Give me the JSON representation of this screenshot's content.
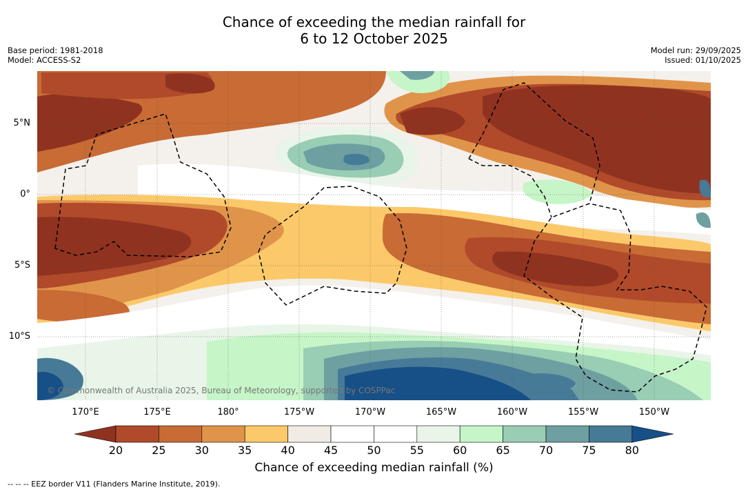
{
  "title": {
    "line1": "Chance of exceeding the median rainfall for",
    "line2": "6 to 12 October 2025"
  },
  "meta_left": {
    "base_period": "Base period: 1981-2018",
    "model": "Model: ACCESS-S2"
  },
  "meta_right": {
    "model_run": "Model run: 29/09/2025",
    "issued": "Issued: 01/10/2025"
  },
  "map": {
    "lat_labels": [
      "5°N",
      "0°",
      "5°S",
      "10°S"
    ],
    "lon_labels": [
      "170°E",
      "175°E",
      "180°",
      "175°W",
      "170°W",
      "165°W",
      "160°W",
      "155°W",
      "150°W"
    ],
    "copyright": "© Commonwealth of Australia 2025, Bureau of Meteorology, supported by COSPPac"
  },
  "colorbar": {
    "ticks": [
      "20",
      "25",
      "30",
      "35",
      "40",
      "45",
      "50",
      "55",
      "60",
      "65",
      "70",
      "75",
      "80"
    ],
    "colors": [
      "#8f3320",
      "#b04a2a",
      "#c86b35",
      "#e0944a",
      "#fbc96a",
      "#f0ebe4",
      "#ffffff",
      "#ffffff",
      "#e9f5e9",
      "#c6f5c8",
      "#99cdb4",
      "#6e9fa1",
      "#467a97",
      "#174f87"
    ],
    "title": "Chance of exceeding median rainfall (%)"
  },
  "footer": "--  --  -- EEZ border V11 (Flanders Marine Institute, 2019)."
}
